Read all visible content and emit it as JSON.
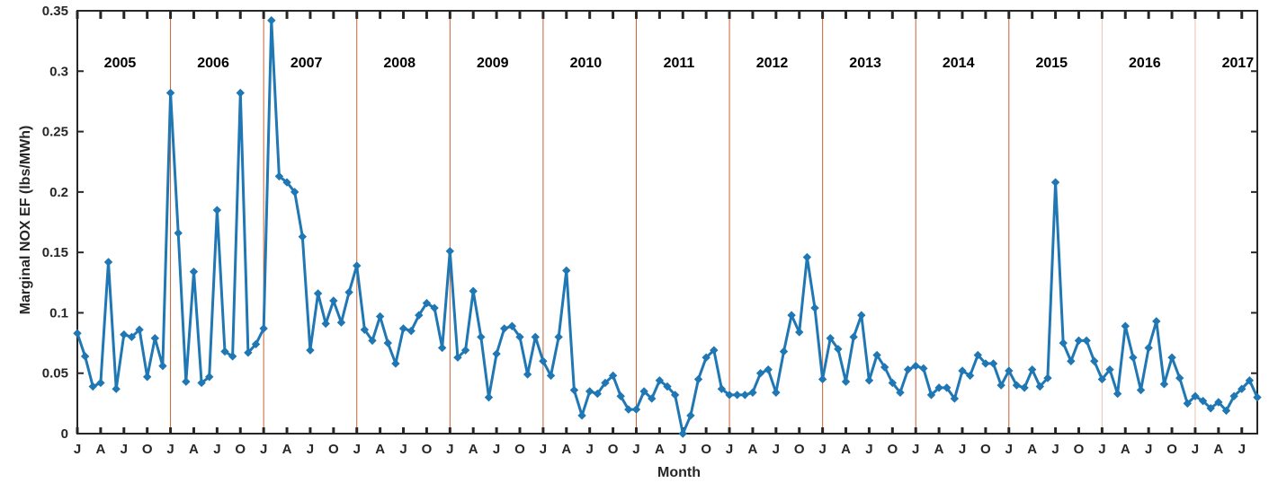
{
  "chart_data": {
    "type": "line",
    "xlabel": "Month",
    "ylabel": "Marginal NOX EF (lbs/MWh)",
    "ylim": [
      0,
      0.35
    ],
    "yticks": [
      "0",
      "0.05",
      "0.1",
      "0.15",
      "0.2",
      "0.25",
      "0.3",
      "0.35"
    ],
    "month_tick_labels": [
      "J",
      "A",
      "J",
      "O"
    ],
    "years": [
      "2005",
      "2006",
      "2007",
      "2008",
      "2009",
      "2010",
      "2011",
      "2012",
      "2013",
      "2014",
      "2015",
      "2016",
      "2017"
    ],
    "grid": false,
    "series": [
      {
        "values": [
          0.083,
          0.064,
          0.039,
          0.042,
          0.142,
          0.037,
          0.082,
          0.08,
          0.086,
          0.047,
          0.079,
          0.056,
          0.282,
          0.166,
          0.043,
          0.134,
          0.042,
          0.047,
          0.185,
          0.068,
          0.064,
          0.282,
          0.067,
          0.074,
          0.087,
          0.342,
          0.213,
          0.208,
          0.2,
          0.163,
          0.069,
          0.116,
          0.091,
          0.11,
          0.092,
          0.117,
          0.139,
          0.086,
          0.077,
          0.097,
          0.075,
          0.058,
          0.087,
          0.085,
          0.098,
          0.108,
          0.104,
          0.071,
          0.151,
          0.063,
          0.069,
          0.118,
          0.08,
          0.03,
          0.066,
          0.087,
          0.089,
          0.08,
          0.049,
          0.08,
          0.06,
          0.048,
          0.08,
          0.135,
          0.036,
          0.015,
          0.035,
          0.033,
          0.042,
          0.048,
          0.031,
          0.02,
          0.02,
          0.035,
          0.029,
          0.044,
          0.039,
          0.032,
          0.0,
          0.015,
          0.045,
          0.063,
          0.069,
          0.037,
          0.032,
          0.032,
          0.032,
          0.034,
          0.05,
          0.053,
          0.034,
          0.068,
          0.098,
          0.084,
          0.146,
          0.104,
          0.045,
          0.079,
          0.07,
          0.043,
          0.08,
          0.098,
          0.044,
          0.065,
          0.055,
          0.042,
          0.034,
          0.053,
          0.056,
          0.054,
          0.032,
          0.038,
          0.038,
          0.029,
          0.052,
          0.048,
          0.065,
          0.058,
          0.058,
          0.04,
          0.052,
          0.04,
          0.038,
          0.053,
          0.039,
          0.046,
          0.208,
          0.075,
          0.06,
          0.077,
          0.077,
          0.06,
          0.045,
          0.053,
          0.033,
          0.089,
          0.063,
          0.036,
          0.071,
          0.093,
          0.041,
          0.063,
          0.046,
          0.025,
          0.031,
          0.027,
          0.021,
          0.026,
          0.019,
          0.031,
          0.037,
          0.044,
          0.03
        ]
      }
    ],
    "colors": {
      "line": "#1f77b4",
      "year_divider": "#c0501f",
      "axis": "#262626"
    }
  }
}
